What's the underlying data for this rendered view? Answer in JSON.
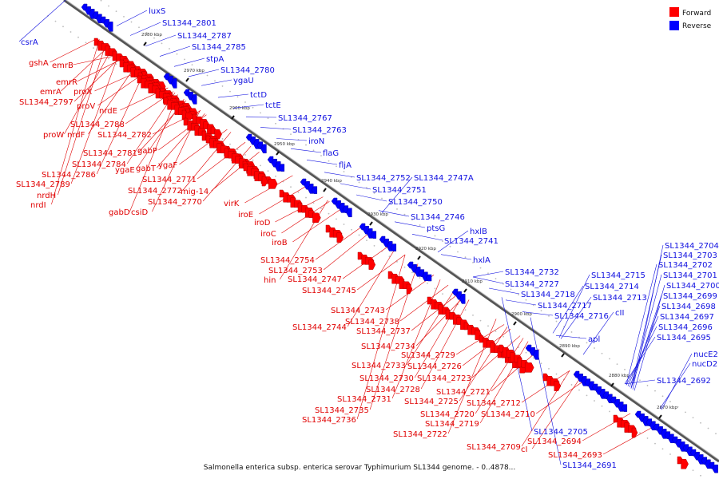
{
  "caption": "Salmonella enterica subsp. enterica serovar Typhimurium SL1344 genome. - 0..4878...",
  "legend": [
    {
      "label": "Forward",
      "color": "#ff0000"
    },
    {
      "label": "Reverse",
      "color": "#0000ff"
    }
  ],
  "colors": {
    "forward": "#ff0000",
    "reverse": "#0000ff",
    "axis": "#888888"
  },
  "ticks": [
    "2980 kbp",
    "2970 kbp",
    "2960 kbp",
    "2950 kbp",
    "2940 kbp",
    "2930 kbp",
    "2920 kbp",
    "2910 kbp",
    "2900 kbp",
    "2890 kbp",
    "2880 kbp",
    "2870 kbp"
  ],
  "forward_labels": [
    "emrB",
    "gshA",
    "emrR",
    "emrA",
    "proX",
    "SL1344_2797",
    "proV",
    "nrdE",
    "SL1344_2788",
    "proW",
    "nrdF",
    "SL1344_2782",
    "SL1344_2781",
    "gabP",
    "SL1344_2784",
    "ygaE",
    "gabT",
    "ygaF",
    "SL1344_2786",
    "SL1344_2771",
    "SL1344_2789",
    "SL1344_2772",
    "mig-14",
    "nrdH",
    "nrdI",
    "SL1344_2770",
    "gabD",
    "csiD",
    "virK",
    "iroE",
    "iroD",
    "iroC",
    "iroB",
    "SL1344_2754",
    "SL1344_2753",
    "hin",
    "SL1344_2747",
    "SL1344_2745",
    "SL1344_2743",
    "SL1344_2738",
    "SL1344_2744",
    "SL1344_2737",
    "SL1344_2734",
    "SL1344_2729",
    "SL1344_2733",
    "SL1344_2726",
    "SL1344_2730",
    "SL1344_2723",
    "SL1344_2728",
    "SL1344_2721",
    "SL1344_2731",
    "SL1344_2725",
    "SL1344_2712",
    "SL1344_2735",
    "SL1344_2720",
    "SL1344_2710",
    "SL1344_2736",
    "SL1344_2719",
    "SL1344_2722",
    "SL1344_2709",
    "cI",
    "SL1344_2694",
    "SL1344_2693"
  ],
  "reverse_labels": [
    "luxS",
    "SL1344_2801",
    "csrA",
    "SL1344_2787",
    "SL1344_2785",
    "stpA",
    "SL1344_2780",
    "ygaU",
    "tctD",
    "tctE",
    "SL1344_2767",
    "SL1344_2763",
    "iroN",
    "flaG",
    "fljA",
    "SL1344_2752",
    "SL1344_2747A",
    "SL1344_2751",
    "SL1344_2750",
    "SL1344_2746",
    "ptsG",
    "hxlB",
    "SL1344_2741",
    "hxlA",
    "SL1344_2732",
    "SL1344_2727",
    "SL1344_2718",
    "SL1344_2717",
    "SL1344_2716",
    "SL1344_2715",
    "SL1344_2714",
    "SL1344_2713",
    "cII",
    "apl",
    "SL1344_2704",
    "SL1344_2703",
    "SL1344_2702",
    "SL1344_2701",
    "SL1344_2700",
    "SL1344_2699",
    "SL1344_2698",
    "SL1344_2697",
    "SL1344_2696",
    "SL1344_2695",
    "nucE2",
    "nucD2",
    "SL1344_2692",
    "SL1344_2705",
    "SL1344_2691"
  ]
}
